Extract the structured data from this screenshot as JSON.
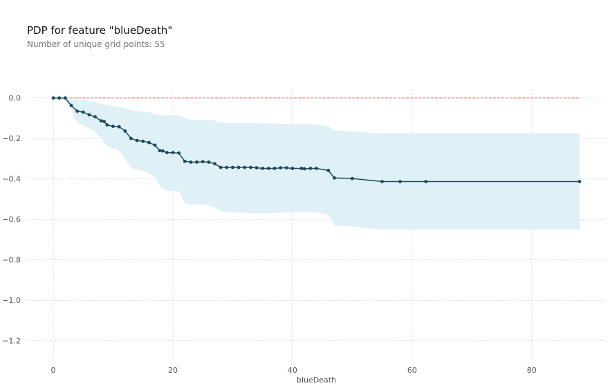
{
  "chart_data": {
    "type": "line",
    "title": "PDP for feature \"blueDeath\"",
    "subtitle": "Number of unique grid points: 55",
    "xlabel": "blueDeath",
    "ylabel": "",
    "xlim": [
      -4.4,
      92.4
    ],
    "ylim": [
      -1.3,
      0.04
    ],
    "xticks": [
      0,
      20,
      40,
      60,
      80
    ],
    "yticks": [
      0.0,
      -0.2,
      -0.4,
      -0.6,
      -0.8,
      -1.0,
      -1.2
    ],
    "xtick_labels": [
      "0",
      "20",
      "40",
      "60",
      "80"
    ],
    "ytick_labels": [
      "0.0",
      "−0.2",
      "−0.4",
      "−0.6",
      "−0.8",
      "−1.0",
      "−1.2"
    ],
    "grid": true,
    "reference_line": {
      "y": 0,
      "x_range": [
        0,
        88
      ],
      "color": "#e05555"
    },
    "series": [
      {
        "color": "#1a4a5a",
        "points": [
          [
            0,
            0.0
          ],
          [
            1,
            0.0
          ],
          [
            2,
            0.0
          ],
          [
            3,
            -0.037
          ],
          [
            4,
            -0.065
          ],
          [
            5,
            -0.07
          ],
          [
            6,
            -0.083
          ],
          [
            7,
            -0.093
          ],
          [
            8,
            -0.113
          ],
          [
            8.5,
            -0.116
          ],
          [
            9,
            -0.133
          ],
          [
            10,
            -0.14
          ],
          [
            11,
            -0.142
          ],
          [
            12,
            -0.163
          ],
          [
            13,
            -0.2
          ],
          [
            14,
            -0.21
          ],
          [
            15,
            -0.214
          ],
          [
            16,
            -0.22
          ],
          [
            17,
            -0.233
          ],
          [
            17.8,
            -0.26
          ],
          [
            18.3,
            -0.262
          ],
          [
            19,
            -0.27
          ],
          [
            20,
            -0.27
          ],
          [
            21,
            -0.272
          ],
          [
            22,
            -0.313
          ],
          [
            23,
            -0.317
          ],
          [
            24,
            -0.317
          ],
          [
            25,
            -0.315
          ],
          [
            26,
            -0.317
          ],
          [
            27,
            -0.325
          ],
          [
            28,
            -0.343
          ],
          [
            29,
            -0.343
          ],
          [
            30,
            -0.343
          ],
          [
            31,
            -0.343
          ],
          [
            32,
            -0.343
          ],
          [
            33,
            -0.343
          ],
          [
            34,
            -0.345
          ],
          [
            35,
            -0.348
          ],
          [
            36,
            -0.348
          ],
          [
            37,
            -0.348
          ],
          [
            38,
            -0.345
          ],
          [
            39,
            -0.345
          ],
          [
            40,
            -0.348
          ],
          [
            41.5,
            -0.348
          ],
          [
            42,
            -0.35
          ],
          [
            43,
            -0.348
          ],
          [
            44,
            -0.348
          ],
          [
            46,
            -0.358
          ],
          [
            47,
            -0.395
          ],
          [
            50,
            -0.398
          ],
          [
            55,
            -0.413
          ],
          [
            58,
            -0.413
          ],
          [
            62.3,
            -0.413
          ],
          [
            88,
            -0.413
          ]
        ]
      }
    ],
    "confidence_band": {
      "color": "#dff0f7",
      "x": [
        0,
        1,
        2,
        3,
        4,
        5,
        6,
        7,
        8,
        9,
        10,
        11,
        12,
        13,
        14,
        15,
        16,
        17,
        18,
        19,
        20,
        21,
        22,
        23,
        24,
        25,
        26,
        27,
        28,
        30,
        35,
        40,
        44,
        46,
        47,
        50,
        55,
        58,
        62,
        88
      ],
      "upper": [
        0.0,
        0.0,
        0.0,
        -0.005,
        -0.01,
        -0.01,
        -0.015,
        -0.02,
        -0.03,
        -0.035,
        -0.04,
        -0.045,
        -0.05,
        -0.06,
        -0.065,
        -0.068,
        -0.07,
        -0.08,
        -0.085,
        -0.085,
        -0.085,
        -0.088,
        -0.1,
        -0.107,
        -0.107,
        -0.107,
        -0.107,
        -0.112,
        -0.122,
        -0.125,
        -0.125,
        -0.128,
        -0.13,
        -0.14,
        -0.16,
        -0.165,
        -0.175,
        -0.175,
        -0.175,
        -0.175
      ],
      "lower": [
        0.0,
        0.0,
        -0.005,
        -0.06,
        -0.125,
        -0.135,
        -0.15,
        -0.17,
        -0.2,
        -0.24,
        -0.25,
        -0.26,
        -0.3,
        -0.345,
        -0.355,
        -0.36,
        -0.37,
        -0.39,
        -0.44,
        -0.46,
        -0.46,
        -0.46,
        -0.52,
        -0.53,
        -0.525,
        -0.525,
        -0.53,
        -0.54,
        -0.56,
        -0.565,
        -0.57,
        -0.565,
        -0.565,
        -0.575,
        -0.63,
        -0.635,
        -0.65,
        -0.65,
        -0.65,
        -0.65
      ]
    }
  }
}
